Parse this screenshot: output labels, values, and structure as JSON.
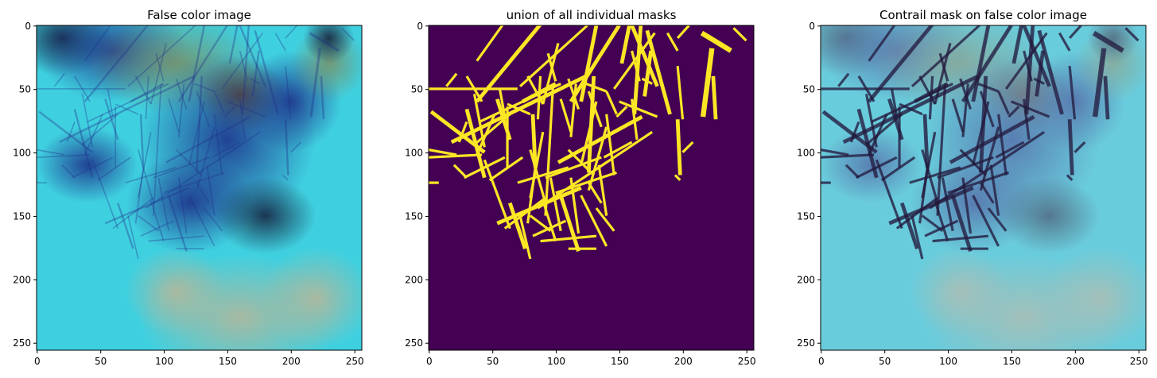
{
  "panels": [
    {
      "title": "False color image",
      "kind": "false-color-satellite",
      "xticks": [
        0,
        50,
        100,
        150,
        200,
        250
      ],
      "yticks": [
        0,
        50,
        100,
        150,
        200,
        250
      ],
      "extent": 256
    },
    {
      "title": "union of all individual masks",
      "kind": "binary-mask",
      "xticks": [
        0,
        50,
        100,
        150,
        200,
        250
      ],
      "yticks": [
        0,
        50,
        100,
        150,
        200,
        250
      ],
      "extent": 256
    },
    {
      "title": "Contrail mask on false color image",
      "kind": "mask-overlay",
      "xticks": [
        0,
        50,
        100,
        150,
        200,
        250
      ],
      "yticks": [
        0,
        50,
        100,
        150,
        200,
        250
      ],
      "extent": 256
    }
  ],
  "colors": {
    "mask_background": "#440154",
    "mask_foreground": "#fde725",
    "overlay_contrail": "#231a3c",
    "sky_cyan": "#3fd0e0",
    "haze_dark_blue": "#1f2f8a",
    "ground_beige": "#a9b8a6"
  }
}
